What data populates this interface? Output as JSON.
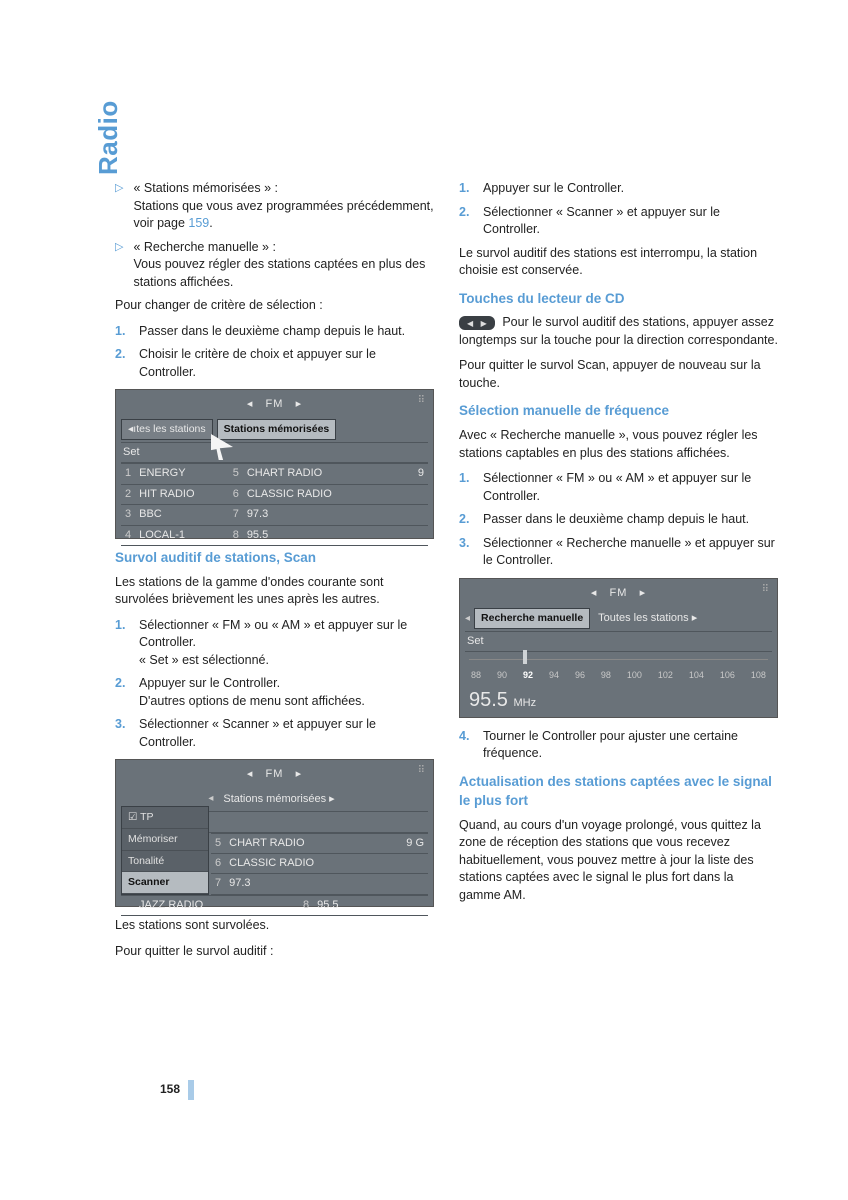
{
  "side_title": "Radio",
  "page_number": "158",
  "col1": {
    "bullets": [
      {
        "title": "« Stations mémorisées » :",
        "body_pre": "Stations que vous avez programmées précédemment, voir page ",
        "page_ref": "159",
        "body_post": "."
      },
      {
        "title": "« Recherche manuelle » :",
        "body": "Vous pouvez régler des stations captées en plus des stations affichées."
      }
    ],
    "change_criteria": "Pour changer de critère de sélection :",
    "steps1": [
      "Passer dans le deuxième champ depuis le haut.",
      "Choisir le critère de choix et appuyer sur le Controller."
    ],
    "screenshot1": {
      "band": "FM",
      "tab_left": "◂ıtes les stations",
      "tab_sel": "Stations mémorisées",
      "set": "Set",
      "rows": [
        {
          "i": "1",
          "l": "ENERGY",
          "ri": "5",
          "r": "CHART RADIO",
          "v": "9"
        },
        {
          "i": "2",
          "l": "HIT RADIO",
          "ri": "6",
          "r": "CLASSIC RADIO",
          "v": ""
        },
        {
          "i": "3",
          "l": "BBC",
          "ri": "7",
          "r": "97.3",
          "v": ""
        },
        {
          "i": "4",
          "l": "LOCAL-1",
          "ri": "8",
          "r": "95.5",
          "v": ""
        }
      ]
    },
    "h_scan": "Survol auditif de stations, Scan",
    "scan_intro": "Les stations de la gamme d'ondes courante sont survolées brièvement les unes après les autres.",
    "steps2": [
      "Sélectionner « FM » ou « AM » et appuyer sur le Controller.\n« Set » est sélectionné.",
      "Appuyer sur le Controller.\nD'autres options de menu sont affichées.",
      "Sélectionner « Scanner » et appuyer sur le Controller."
    ],
    "screenshot2": {
      "band": "FM",
      "tab_mid": "Stations mémorisées ▸",
      "menu": [
        "TP",
        "Mémoriser",
        "Tonalité",
        "Scanner"
      ],
      "menu_sel": "Scanner",
      "rows": [
        {
          "ri": "5",
          "r": "CHART RADIO",
          "v": "9 G"
        },
        {
          "ri": "6",
          "r": "CLASSIC RADIO",
          "v": ""
        },
        {
          "ri": "7",
          "r": "97.3",
          "v": ""
        },
        {
          "ri": "4",
          "l": "JAZZ RADIO",
          "ri2": "8",
          "r2": "95.5"
        }
      ]
    },
    "after_scr2_1": "Les stations sont survolées.",
    "after_scr2_2": "Pour quitter le survol auditif :"
  },
  "col2": {
    "steps3": [
      "Appuyer sur le Controller.",
      "Sélectionner « Scanner » et appuyer sur le Controller."
    ],
    "interrupt": "Le survol auditif des stations est interrompu, la station choisie est conservée.",
    "h_cd": "Touches du lecteur de CD",
    "cd_body": "Pour le survol auditif des stations, appuyer assez longtemps sur la touche pour la direction correspondante.",
    "cd_quit": "Pour quitter le survol Scan, appuyer de nouveau sur la touche.",
    "h_manual": "Sélection manuelle de fréquence",
    "manual_intro": "Avec « Recherche manuelle », vous pouvez régler les stations captables en plus des stations affichées.",
    "steps4": [
      "Sélectionner « FM » ou « AM » et appuyer sur le Controller.",
      "Passer dans le deuxième champ depuis le haut.",
      "Sélectionner « Recherche manuelle » et appuyer sur le Controller."
    ],
    "screenshot3": {
      "band": "FM",
      "tab_sel": "Recherche manuelle",
      "tab_right": "Toutes les stations ▸",
      "set": "Set",
      "scale": [
        "88",
        "90",
        "92",
        "94",
        "96",
        "98",
        "100",
        "102",
        "104",
        "106",
        "108"
      ],
      "scale_bold": "92",
      "freq": "95.5",
      "unit": "MHz"
    },
    "step5_n": "4.",
    "step5": "Tourner le Controller pour ajuster une certaine fréquence.",
    "h_update": "Actualisation des stations captées avec le signal le plus fort",
    "update_body": "Quand, au cours d'un voyage prolongé, vous quittez la zone de réception des stations que vous recevez habituellement, vous pouvez mettre à jour la liste des stations captées avec le signal le plus fort dans la gamme AM."
  }
}
